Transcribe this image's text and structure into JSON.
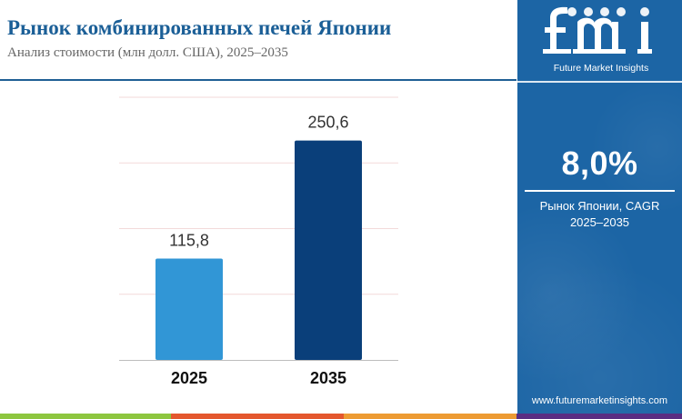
{
  "header": {
    "title": "Рынок комбинированных печей Японии",
    "subtitle": "Анализ стоимости (млн долл. США), 2025–2035"
  },
  "chart_data": {
    "type": "bar",
    "categories": [
      "2025",
      "2035"
    ],
    "values": [
      115.8,
      250.6
    ],
    "value_labels": [
      "115,8",
      "250,6"
    ],
    "colors": [
      "#3196d6",
      "#0a3f7a"
    ],
    "ylim": [
      0,
      300
    ],
    "grid": true,
    "xlabel": "",
    "ylabel": ""
  },
  "sidebar": {
    "logo_text": "fmi",
    "logo_name": "Future Market Insights",
    "cagr_value": "8,0%",
    "cagr_label_line1": "Рынок Японии, CAGR",
    "cagr_label_line2": "2025–2035",
    "website": "www.futuremarketinsights.com",
    "background": "#1c65a5"
  },
  "footer": {
    "colors": [
      "#8dc63f",
      "#e4572e",
      "#ed9b33",
      "#5a2d82"
    ]
  }
}
